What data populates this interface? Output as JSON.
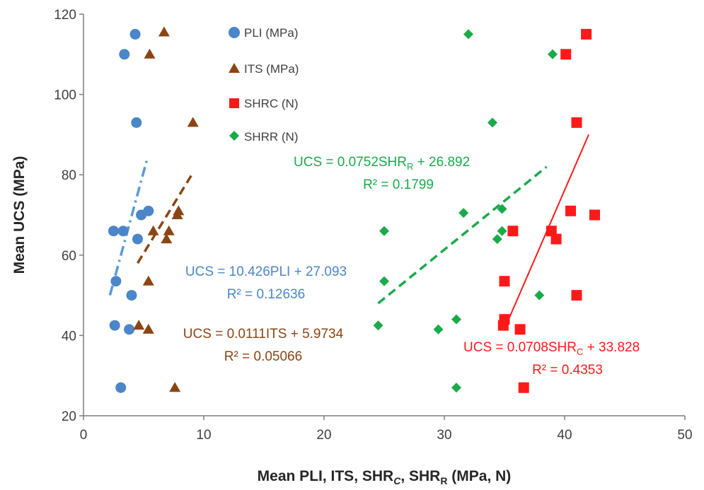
{
  "chart_data": {
    "type": "scatter",
    "xlabel": "Mean PLI, ITS, SHR",
    "xlabel_sub_c": "C",
    "xlabel_mid": ", SHR",
    "xlabel_sub_r": "R",
    "xlabel_end": " (MPa, N)",
    "ylabel": "Mean UCS (MPa)",
    "xlim": [
      0,
      50
    ],
    "ylim": [
      20,
      120
    ],
    "xticks": [
      "0",
      "10",
      "20",
      "30",
      "40",
      "50"
    ],
    "yticks": [
      "20",
      "40",
      "60",
      "80",
      "100",
      "120"
    ],
    "grid": false,
    "legend_position": "top-center",
    "series": [
      {
        "name": "PLI (MPa)",
        "marker": "circle",
        "color": "#4a86c8",
        "points": [
          [
            4.3,
            115
          ],
          [
            3.4,
            110
          ],
          [
            4.4,
            93
          ],
          [
            2.5,
            66
          ],
          [
            3.3,
            66
          ],
          [
            5.4,
            71
          ],
          [
            4.8,
            70
          ],
          [
            4.5,
            64
          ],
          [
            2.7,
            53.5
          ],
          [
            4.0,
            50
          ],
          [
            2.6,
            42.5
          ],
          [
            3.8,
            41.5
          ],
          [
            3.1,
            27
          ]
        ]
      },
      {
        "name": "ITS (MPa)",
        "marker": "triangle",
        "color": "#8b4513",
        "points": [
          [
            6.7,
            115.5
          ],
          [
            5.5,
            110
          ],
          [
            9.1,
            93
          ],
          [
            5.8,
            66
          ],
          [
            7.1,
            66
          ],
          [
            7.9,
            71
          ],
          [
            7.8,
            70
          ],
          [
            6.9,
            64
          ],
          [
            5.4,
            53.5
          ],
          [
            4.6,
            42.5
          ],
          [
            5.4,
            41.5
          ],
          [
            7.6,
            27
          ]
        ]
      },
      {
        "name": "SHRC (N)",
        "marker": "square",
        "color": "#ff1a1a",
        "points": [
          [
            41.8,
            115
          ],
          [
            40.1,
            110
          ],
          [
            41.0,
            93
          ],
          [
            40.5,
            71
          ],
          [
            42.5,
            70
          ],
          [
            35.7,
            66
          ],
          [
            38.9,
            66
          ],
          [
            39.3,
            64
          ],
          [
            35.0,
            53.5
          ],
          [
            41.0,
            50
          ],
          [
            35.0,
            44
          ],
          [
            34.9,
            42.5
          ],
          [
            36.3,
            41.5
          ],
          [
            36.6,
            27
          ]
        ]
      },
      {
        "name": "SHRR (N)",
        "marker": "diamond",
        "color": "#1aaa4a",
        "points": [
          [
            32.0,
            115
          ],
          [
            39.0,
            110
          ],
          [
            34.0,
            93
          ],
          [
            34.8,
            71.5
          ],
          [
            31.6,
            70.5
          ],
          [
            25.0,
            66
          ],
          [
            34.8,
            66
          ],
          [
            34.4,
            64
          ],
          [
            25.0,
            53.5
          ],
          [
            37.9,
            50
          ],
          [
            31.0,
            44
          ],
          [
            24.5,
            42.5
          ],
          [
            29.5,
            41.5
          ],
          [
            31.0,
            27
          ]
        ]
      }
    ],
    "trendlines": [
      {
        "series": "PLI (MPa)",
        "style": "dash-dot",
        "color": "#5a9ad6",
        "x": [
          2.2,
          5.3
        ],
        "y": [
          50,
          84
        ]
      },
      {
        "series": "ITS (MPa)",
        "style": "dashed",
        "color": "#8b4513",
        "x": [
          4.5,
          9.0
        ],
        "y": [
          58,
          80
        ]
      },
      {
        "series": "SHRC (N)",
        "style": "solid",
        "color": "#ff1a1a",
        "x": [
          35.2,
          42.0
        ],
        "y": [
          43,
          90
        ]
      },
      {
        "series": "SHRR (N)",
        "style": "dashed",
        "color": "#1aaa4a",
        "x": [
          24.5,
          38.5
        ],
        "y": [
          48,
          82
        ]
      }
    ],
    "annotations": {
      "shrr_eq_main": "UCS = 0.0752SHR",
      "shrr_eq_sub": "R",
      "shrr_eq_rest": " + 26.892",
      "shrr_r2": "R² = 0.1799",
      "pli_eq": "UCS = 10.426PLI + 27.093",
      "pli_r2": "R² = 0.12636",
      "its_eq": "UCS = 0.0111ITS + 5.9734",
      "its_r2": "R² = 0.05066",
      "shrc_eq_main": "UCS = 0.0708SHR",
      "shrc_eq_sub": "C",
      "shrc_eq_rest": " + 33.828",
      "shrc_r2": "R² = 0.4353"
    }
  }
}
